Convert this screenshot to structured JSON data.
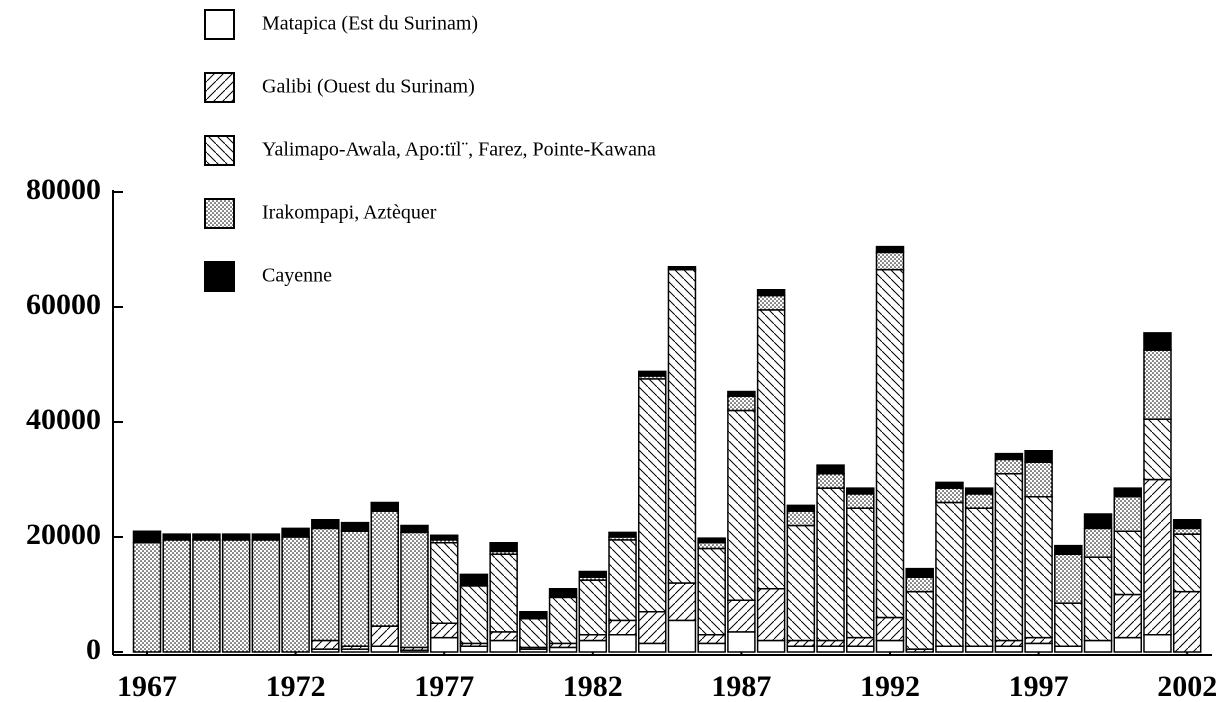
{
  "chart_data": {
    "type": "stacked_bar",
    "categories": [
      "1967",
      null,
      null,
      null,
      null,
      "1972",
      null,
      null,
      null,
      null,
      "1977",
      null,
      null,
      null,
      null,
      "1982",
      null,
      null,
      null,
      null,
      "1987",
      null,
      null,
      null,
      null,
      "1992",
      null,
      null,
      null,
      null,
      "1997",
      null,
      null,
      null,
      null,
      "2002"
    ],
    "series": [
      {
        "name": "Matapica (Est du Surinam)",
        "color": "#ffffff",
        "pattern": "solid",
        "values": [
          0,
          0,
          0,
          0,
          0,
          0,
          0.5,
          0.5,
          1,
          0.3,
          2.5,
          1,
          2,
          0.5,
          0.8,
          2,
          3,
          1.5,
          5.5,
          1.5,
          3.5,
          2,
          1,
          1,
          1,
          2,
          0,
          1,
          1,
          1,
          1.5,
          1,
          2,
          2.5,
          3,
          0
        ]
      },
      {
        "name": "Galibi (Ouest du Surinam)",
        "color": "#000000",
        "pattern": "hatch-forward",
        "values": [
          0,
          0,
          0,
          0,
          0,
          0,
          1.5,
          0.5,
          3.5,
          0.5,
          2.5,
          0.5,
          1.5,
          0.3,
          0.7,
          1,
          2.5,
          5.5,
          6.5,
          1.5,
          5.5,
          9,
          1,
          1,
          1.5,
          4,
          0.5,
          0,
          0,
          1,
          1,
          0,
          0,
          7.5,
          27,
          10.5
        ]
      },
      {
        "name": "Yalimapo-Awala, Apo:tïl¨, Farez, Pointe-Kawana",
        "color": "#000000",
        "pattern": "hatch-back",
        "values": [
          0,
          0,
          0,
          0,
          0,
          0,
          0,
          0,
          0,
          0,
          14,
          10,
          13.5,
          5,
          8,
          9.5,
          14,
          40.5,
          54.5,
          15,
          33,
          48.5,
          20,
          26.5,
          22.5,
          60.5,
          10,
          25,
          24,
          29,
          24.5,
          7.5,
          14.5,
          11,
          10.5,
          10
        ]
      },
      {
        "name": "Irakompapi, Aztèquer",
        "color": "#000000",
        "pattern": "dots",
        "values": [
          19,
          19.5,
          19.5,
          19.5,
          19.5,
          20,
          19.5,
          20,
          20,
          20,
          0.5,
          0,
          0.5,
          0,
          0,
          0.5,
          0.5,
          0.5,
          0,
          1,
          2.5,
          2.5,
          2.5,
          2.5,
          2.5,
          3,
          2.5,
          2.5,
          2.5,
          2.5,
          6,
          8.5,
          5,
          6,
          12,
          1
        ]
      },
      {
        "name": "Cayenne",
        "color": "#000000",
        "pattern": "solid",
        "values": [
          2,
          1,
          1,
          1,
          1,
          1.5,
          1.5,
          1.5,
          1.5,
          1.2,
          0.8,
          2,
          1.5,
          1.2,
          1.5,
          1,
          0.8,
          0.8,
          0.5,
          0.8,
          0.8,
          1,
          1,
          1.5,
          1,
          1,
          1.5,
          1,
          1,
          1,
          2,
          1.5,
          2.5,
          1.5,
          3,
          1.5
        ]
      }
    ],
    "value_scale": 1000,
    "ylim": [
      0,
      80000
    ],
    "yticks": [
      0,
      20000,
      40000,
      60000,
      80000
    ]
  }
}
